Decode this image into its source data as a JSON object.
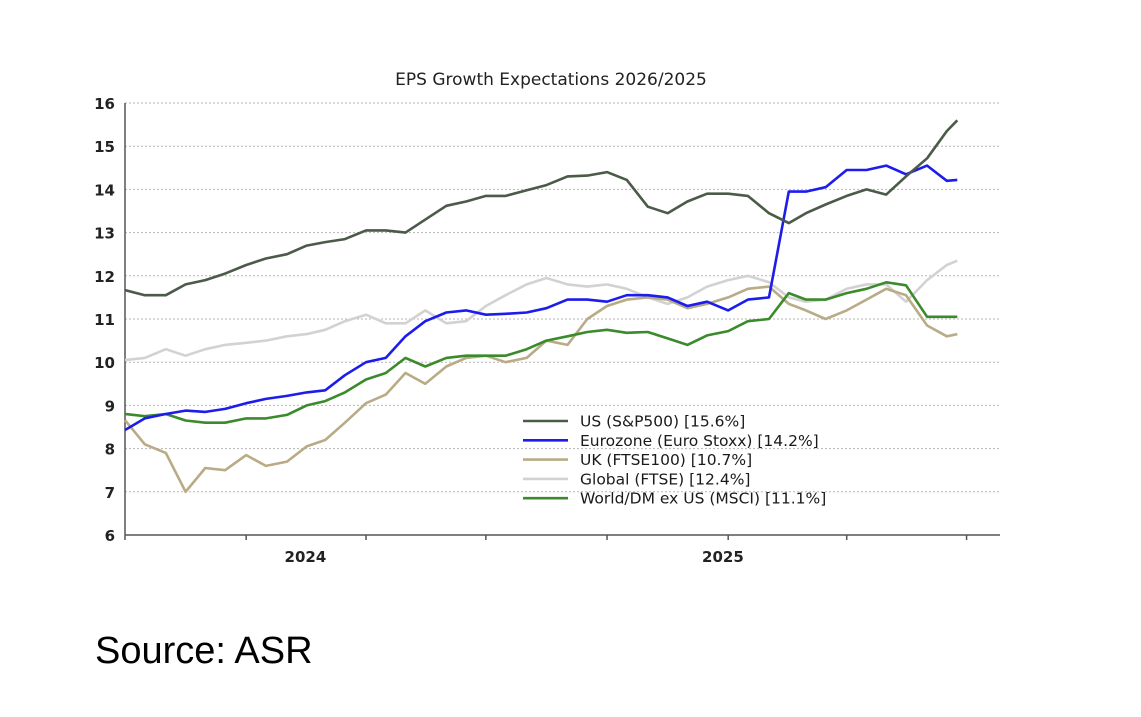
{
  "chart_data": {
    "type": "line",
    "title": "EPS Growth Expectations 2026/2025",
    "xlabel": "",
    "ylabel": "",
    "ylim": [
      6,
      16
    ],
    "yticks": [
      6,
      7,
      8,
      9,
      10,
      11,
      12,
      13,
      14,
      15,
      16
    ],
    "xlim": [
      "2023-10-01",
      "2025-07-24"
    ],
    "xticks": [
      "2023-10-01",
      "2024-01-01",
      "2024-04-01",
      "2024-07-01",
      "2024-10-01",
      "2025-01-01",
      "2025-04-01",
      "2025-07-01"
    ],
    "xtick_labels": [
      {
        "label": "2024",
        "date": "2024-02-15"
      },
      {
        "label": "2025",
        "date": "2024-12-28"
      }
    ],
    "grid": "horizontal dotted",
    "legend": "bottom-center",
    "x": [
      "2023-10-01",
      "2023-10-16",
      "2023-11-01",
      "2023-11-16",
      "2023-12-01",
      "2023-12-16",
      "2024-01-01",
      "2024-01-16",
      "2024-02-01",
      "2024-02-16",
      "2024-03-01",
      "2024-03-16",
      "2024-04-01",
      "2024-04-16",
      "2024-05-01",
      "2024-05-16",
      "2024-06-01",
      "2024-06-16",
      "2024-07-01",
      "2024-07-16",
      "2024-08-01",
      "2024-08-16",
      "2024-09-01",
      "2024-09-16",
      "2024-10-01",
      "2024-10-16",
      "2024-11-01",
      "2024-11-16",
      "2024-12-01",
      "2024-12-16",
      "2025-01-01",
      "2025-01-16",
      "2025-02-01",
      "2025-02-16",
      "2025-03-01",
      "2025-03-16",
      "2025-04-01",
      "2025-04-16",
      "2025-05-01",
      "2025-05-16",
      "2025-06-01",
      "2025-06-16",
      "2025-06-24"
    ],
    "series": [
      {
        "name": "US (S&P500) [15.6%]",
        "color": "#4b5a49",
        "values": [
          11.67,
          11.55,
          11.55,
          11.8,
          11.9,
          12.05,
          12.25,
          12.4,
          12.5,
          12.7,
          12.78,
          12.85,
          13.05,
          13.05,
          13.0,
          13.3,
          13.62,
          13.72,
          13.85,
          13.85,
          13.98,
          14.1,
          14.3,
          14.32,
          14.4,
          14.22,
          13.6,
          13.45,
          13.72,
          13.9,
          13.9,
          13.85,
          13.45,
          13.22,
          13.45,
          13.65,
          13.85,
          14.0,
          13.88,
          14.3,
          14.72,
          15.35,
          15.6
        ]
      },
      {
        "name": "Eurozone (Euro Stoxx) [14.2%]",
        "color": "#1c1ced",
        "values": [
          8.43,
          8.7,
          8.8,
          8.88,
          8.85,
          8.92,
          9.05,
          9.15,
          9.22,
          9.3,
          9.35,
          9.7,
          10.0,
          10.1,
          10.6,
          10.95,
          11.15,
          11.2,
          11.1,
          11.12,
          11.15,
          11.25,
          11.45,
          11.45,
          11.4,
          11.55,
          11.55,
          11.5,
          11.3,
          11.4,
          11.2,
          11.45,
          11.5,
          13.95,
          13.95,
          14.05,
          14.45,
          14.45,
          14.55,
          14.35,
          14.55,
          14.2,
          14.22
        ]
      },
      {
        "name": "UK (FTSE100) [10.7%]",
        "color": "#b8ab85",
        "values": [
          8.66,
          8.1,
          7.9,
          7.0,
          7.55,
          7.5,
          7.85,
          7.6,
          7.7,
          8.05,
          8.2,
          8.6,
          9.05,
          9.25,
          9.75,
          9.5,
          9.9,
          10.1,
          10.15,
          10.0,
          10.1,
          10.5,
          10.4,
          11.0,
          11.3,
          11.45,
          11.5,
          11.45,
          11.25,
          11.35,
          11.5,
          11.7,
          11.75,
          11.35,
          11.2,
          11.0,
          11.2,
          11.45,
          11.7,
          11.55,
          10.85,
          10.6,
          10.65
        ]
      },
      {
        "name": "Global (FTSE) [12.4%]",
        "color": "#d2d2d2",
        "values": [
          10.05,
          10.1,
          10.3,
          10.15,
          10.3,
          10.4,
          10.45,
          10.5,
          10.6,
          10.65,
          10.75,
          10.95,
          11.1,
          10.9,
          10.9,
          11.2,
          10.9,
          10.95,
          11.3,
          11.55,
          11.8,
          11.95,
          11.8,
          11.75,
          11.8,
          11.7,
          11.5,
          11.35,
          11.5,
          11.75,
          11.9,
          12.0,
          11.85,
          11.5,
          11.4,
          11.45,
          11.7,
          11.8,
          11.8,
          11.4,
          11.9,
          12.25,
          12.35
        ]
      },
      {
        "name": "World/DM ex US (MSCI) [11.1%]",
        "color": "#3b8a2c",
        "values": [
          8.8,
          8.75,
          8.8,
          8.65,
          8.6,
          8.6,
          8.7,
          8.7,
          8.78,
          9.0,
          9.1,
          9.3,
          9.6,
          9.75,
          10.1,
          9.9,
          10.1,
          10.15,
          10.15,
          10.15,
          10.3,
          10.5,
          10.6,
          10.7,
          10.75,
          10.68,
          10.7,
          10.55,
          10.4,
          10.62,
          10.72,
          10.95,
          11.0,
          11.6,
          11.45,
          11.45,
          11.6,
          11.7,
          11.85,
          11.78,
          11.05,
          11.05,
          11.05
        ]
      }
    ]
  },
  "source": "Source: ASR"
}
